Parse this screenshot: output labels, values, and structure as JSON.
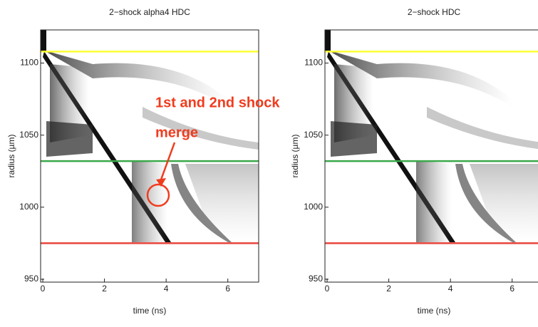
{
  "chart_data": [
    {
      "type": "image",
      "title": "2−shock alpha4 HDC",
      "x_label": "time (ns)",
      "y_label": "radius (µm)",
      "xlim": [
        -0.07,
        7.0
      ],
      "ylim": [
        948,
        1123
      ],
      "xticks": [
        0,
        2,
        4,
        6
      ],
      "yticks": [
        950,
        1000,
        1050,
        1100
      ],
      "hlines": [
        {
          "value": 1108,
          "color": "#ffff33"
        },
        {
          "value": 1032,
          "color": "#3aa84a"
        },
        {
          "value": 975,
          "color": "#e8453c"
        }
      ],
      "annotations": [
        "1st and 2nd shock",
        "merge"
      ]
    },
    {
      "type": "image",
      "title": "2−shock HDC",
      "x_label": "time (ns)",
      "y_label": "radius (µm)",
      "xlim": [
        -0.07,
        7.0
      ],
      "ylim": [
        948,
        1123
      ],
      "xticks": [
        0,
        2,
        4,
        6
      ],
      "yticks": [
        950,
        1000,
        1050,
        1100
      ],
      "hlines": [
        {
          "value": 1108,
          "color": "#ffff33"
        },
        {
          "value": 1032,
          "color": "#3aa84a"
        },
        {
          "value": 975,
          "color": "#e8453c"
        }
      ]
    }
  ]
}
